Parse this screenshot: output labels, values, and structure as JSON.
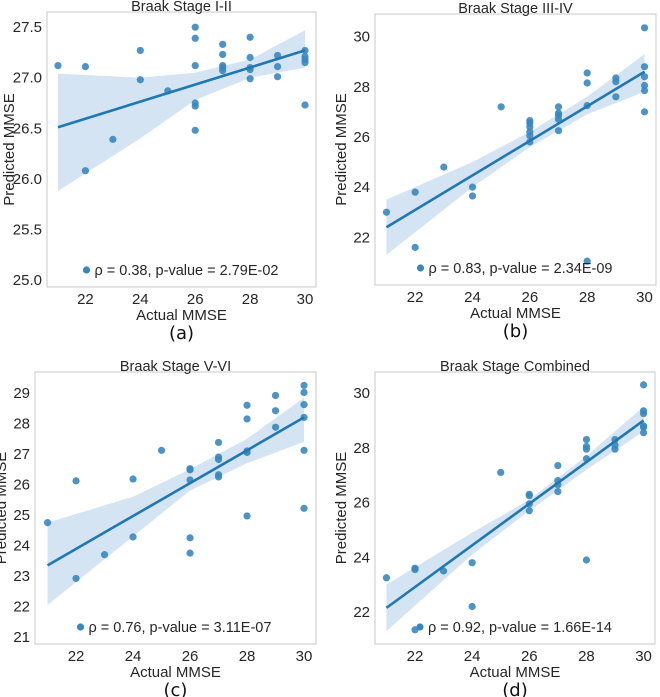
{
  "colors": {
    "point": "#3a87c0",
    "line": "#1f77b4",
    "band": "#c6dbef",
    "frame": "#c8c8c8"
  },
  "chart_data": [
    {
      "type": "scatter",
      "caption": "(a)",
      "title": "Braak Stage I-II",
      "xlabel": "Actual MMSE",
      "ylabel": "Predicted MMSE",
      "xlim": [
        20.6,
        30.4
      ],
      "ylim": [
        24.93,
        27.65
      ],
      "xticks": [
        22,
        24,
        26,
        28,
        30
      ],
      "yticks": [
        25.0,
        25.5,
        26.0,
        26.5,
        27.0,
        27.5
      ],
      "ytick_labels": [
        "25.0",
        "25.5",
        "26.0",
        "26.5",
        "27.0",
        "27.5"
      ],
      "legend": "ρ = 0.38, p-value = 2.79E-02",
      "legend_placement": "bottom-center",
      "points": [
        [
          21,
          27.12
        ],
        [
          22,
          27.11
        ],
        [
          22,
          26.08
        ],
        [
          23,
          26.39
        ],
        [
          24,
          27.27
        ],
        [
          24,
          26.98
        ],
        [
          25,
          26.87
        ],
        [
          26,
          27.5
        ],
        [
          26,
          27.39
        ],
        [
          26,
          27.12
        ],
        [
          26,
          26.75
        ],
        [
          26,
          26.72
        ],
        [
          26,
          26.48
        ],
        [
          27,
          27.33
        ],
        [
          27,
          27.23
        ],
        [
          27,
          27.12
        ],
        [
          27,
          27.1
        ],
        [
          27,
          27.07
        ],
        [
          28,
          27.4
        ],
        [
          28,
          27.2
        ],
        [
          28,
          27.1
        ],
        [
          28,
          27.08
        ],
        [
          28,
          26.99
        ],
        [
          29,
          27.22
        ],
        [
          29,
          27.11
        ],
        [
          29,
          27.01
        ],
        [
          30,
          27.27
        ],
        [
          30,
          27.21
        ],
        [
          30,
          27.18
        ],
        [
          30,
          27.15
        ],
        [
          30,
          26.73
        ]
      ],
      "fit": {
        "x": [
          21,
          30
        ],
        "y": [
          26.51,
          27.27
        ]
      },
      "ci": {
        "x": [
          21,
          24,
          26,
          28,
          30
        ],
        "lower": [
          25.88,
          26.4,
          26.78,
          27.0,
          27.1
        ],
        "upper": [
          27.04,
          27.0,
          27.05,
          27.18,
          27.47
        ]
      }
    },
    {
      "type": "scatter",
      "caption": "(b)",
      "title": "Braak Stage III-IV",
      "xlabel": "Actual MMSE",
      "ylabel": "Predicted MMSE",
      "xlim": [
        20.6,
        30.4
      ],
      "ylim": [
        20.1,
        30.9
      ],
      "xticks": [
        22,
        24,
        26,
        28,
        30
      ],
      "yticks": [
        22,
        24,
        26,
        28,
        30
      ],
      "ytick_labels": [
        "22",
        "24",
        "26",
        "28",
        "30"
      ],
      "legend": "ρ = 0.83, p-value = 2.34E-09",
      "legend_placement": "bottom-center",
      "points": [
        [
          21,
          23.0
        ],
        [
          22,
          23.8
        ],
        [
          22,
          21.6
        ],
        [
          23,
          24.8
        ],
        [
          24,
          24.0
        ],
        [
          24,
          23.65
        ],
        [
          25,
          27.2
        ],
        [
          26,
          26.65
        ],
        [
          26,
          26.55
        ],
        [
          26,
          26.4
        ],
        [
          26,
          26.2
        ],
        [
          26,
          26.05
        ],
        [
          26,
          25.8
        ],
        [
          27,
          27.2
        ],
        [
          27,
          26.95
        ],
        [
          27,
          26.85
        ],
        [
          27,
          26.7
        ],
        [
          27,
          26.25
        ],
        [
          28,
          28.55
        ],
        [
          28,
          28.15
        ],
        [
          28,
          27.25
        ],
        [
          28,
          21.05
        ],
        [
          29,
          28.35
        ],
        [
          29,
          28.2
        ],
        [
          29,
          27.6
        ],
        [
          30,
          30.35
        ],
        [
          30,
          28.8
        ],
        [
          30,
          28.4
        ],
        [
          30,
          28.05
        ],
        [
          30,
          27.85
        ],
        [
          30,
          27.0
        ]
      ],
      "fit": {
        "x": [
          21,
          30
        ],
        "y": [
          22.4,
          28.6
        ]
      },
      "ci": {
        "x": [
          21,
          24,
          26,
          28,
          30
        ],
        "lower": [
          21.3,
          24.0,
          25.6,
          26.9,
          27.8
        ],
        "upper": [
          23.5,
          25.0,
          26.2,
          27.6,
          29.3
        ]
      }
    },
    {
      "type": "scatter",
      "caption": "(c)",
      "title": "Braak Stage V-VI",
      "xlabel": "Actual MMSE",
      "ylabel": "Predicted MMSE",
      "xlim": [
        20.56,
        30.42
      ],
      "ylim": [
        20.77,
        29.69
      ],
      "xticks": [
        22,
        24,
        26,
        28,
        30
      ],
      "yticks": [
        21,
        22,
        23,
        24,
        25,
        26,
        27,
        28,
        29
      ],
      "ytick_labels": [
        "21",
        "22",
        "23",
        "24",
        "25",
        "26",
        "27",
        "28",
        "29"
      ],
      "legend": "ρ = 0.76, p-value = 3.11E-07",
      "legend_placement": "bottom-center",
      "points": [
        [
          21,
          24.75
        ],
        [
          22,
          26.12
        ],
        [
          22,
          22.92
        ],
        [
          23,
          23.7
        ],
        [
          24,
          26.18
        ],
        [
          24,
          24.28
        ],
        [
          25,
          27.12
        ],
        [
          26,
          26.52
        ],
        [
          26,
          26.48
        ],
        [
          26,
          26.15
        ],
        [
          26,
          24.25
        ],
        [
          26,
          23.75
        ],
        [
          27,
          27.38
        ],
        [
          27,
          26.9
        ],
        [
          27,
          26.82
        ],
        [
          27,
          26.32
        ],
        [
          27,
          26.25
        ],
        [
          28,
          28.6
        ],
        [
          28,
          28.15
        ],
        [
          28,
          27.1
        ],
        [
          28,
          27.05
        ],
        [
          28,
          24.97
        ],
        [
          29,
          28.92
        ],
        [
          29,
          28.42
        ],
        [
          29,
          27.88
        ],
        [
          30,
          29.25
        ],
        [
          30,
          29.02
        ],
        [
          30,
          28.62
        ],
        [
          30,
          28.2
        ],
        [
          30,
          27.12
        ],
        [
          30,
          25.22
        ]
      ],
      "fit": {
        "x": [
          21,
          30
        ],
        "y": [
          23.35,
          28.2
        ]
      },
      "ci": {
        "x": [
          21,
          24,
          26,
          28,
          30
        ],
        "lower": [
          22.05,
          24.3,
          25.8,
          26.7,
          27.4
        ],
        "upper": [
          24.75,
          25.6,
          26.5,
          27.5,
          28.85
        ]
      }
    },
    {
      "type": "scatter",
      "caption": "(d)",
      "title": "Braak Stage Combined",
      "xlabel": "Actual MMSE",
      "ylabel": "Predicted MMSE",
      "xlim": [
        20.6,
        30.4
      ],
      "ylim": [
        20.83,
        30.77
      ],
      "xticks": [
        22,
        24,
        26,
        28,
        30
      ],
      "yticks": [
        22,
        24,
        26,
        28,
        30
      ],
      "ytick_labels": [
        "22",
        "24",
        "26",
        "28",
        "30"
      ],
      "legend": "ρ = 0.92, p-value = 1.66E-14",
      "legend_placement": "bottom-center",
      "points": [
        [
          21,
          23.25
        ],
        [
          22,
          23.6
        ],
        [
          22,
          23.55
        ],
        [
          22,
          21.35
        ],
        [
          23,
          23.5
        ],
        [
          24,
          23.8
        ],
        [
          24,
          22.2
        ],
        [
          25,
          27.1
        ],
        [
          26,
          26.3
        ],
        [
          26,
          26.25
        ],
        [
          26,
          25.95
        ],
        [
          26,
          25.7
        ],
        [
          27,
          27.35
        ],
        [
          27,
          26.8
        ],
        [
          27,
          26.65
        ],
        [
          27,
          26.4
        ],
        [
          28,
          28.3
        ],
        [
          28,
          28.05
        ],
        [
          28,
          27.95
        ],
        [
          28,
          27.6
        ],
        [
          28,
          23.9
        ],
        [
          29,
          28.3
        ],
        [
          29,
          28.1
        ],
        [
          29,
          27.95
        ],
        [
          30,
          30.3
        ],
        [
          30,
          29.35
        ],
        [
          30,
          29.25
        ],
        [
          30,
          28.8
        ],
        [
          30,
          28.75
        ],
        [
          30,
          28.55
        ]
      ],
      "fit": {
        "x": [
          21,
          30
        ],
        "y": [
          22.15,
          29.0
        ]
      },
      "ci": {
        "x": [
          21,
          24,
          26,
          28,
          30
        ],
        "lower": [
          21.3,
          24.1,
          25.7,
          27.2,
          28.6
        ],
        "upper": [
          23.0,
          24.9,
          26.1,
          27.7,
          29.5
        ]
      }
    }
  ]
}
